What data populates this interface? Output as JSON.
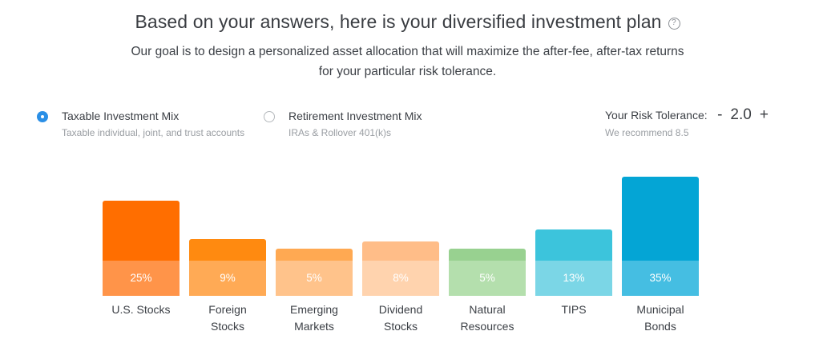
{
  "header": {
    "title": "Based on your answers, here is your diversified investment plan",
    "help_icon": "?",
    "subtitle_line1": "Our goal is to design a personalized asset allocation that will maximize the after-fee, after-tax returns",
    "subtitle_line2": "for your particular risk tolerance."
  },
  "options": [
    {
      "label": "Taxable Investment Mix",
      "description": "Taxable individual, joint, and trust accounts",
      "selected": true
    },
    {
      "label": "Retirement Investment Mix",
      "description": "IRAs & Rollover 401(k)s",
      "selected": false
    }
  ],
  "risk": {
    "label": "Your Risk Tolerance:",
    "decrement": "-",
    "value": "2.0",
    "increment": "+",
    "recommendation": "We recommend 8.5"
  },
  "chart_data": {
    "type": "bar",
    "title": "Taxable Investment Mix allocation",
    "categories": [
      "U.S. Stocks",
      "Foreign Stocks",
      "Emerging Markets",
      "Dividend Stocks",
      "Natural Resources",
      "TIPS",
      "Municipal Bonds"
    ],
    "values": [
      25,
      9,
      5,
      8,
      5,
      13,
      35
    ],
    "value_labels": [
      "25%",
      "9%",
      "5%",
      "8%",
      "5%",
      "13%",
      "35%"
    ],
    "label_lines": [
      [
        "U.S. Stocks"
      ],
      [
        "Foreign",
        "Stocks"
      ],
      [
        "Emerging",
        "Markets"
      ],
      [
        "Dividend",
        "Stocks"
      ],
      [
        "Natural",
        "Resources"
      ],
      [
        "TIPS"
      ],
      [
        "Municipal",
        "Bonds"
      ]
    ],
    "colors_top": [
      "#ff6e00",
      "#ff8a10",
      "#ffa952",
      "#ffbd88",
      "#98d190",
      "#3cc4dc",
      "#04a5d5"
    ],
    "colors_bottom": [
      "#ff9449",
      "#ffaa55",
      "#ffc38b",
      "#ffd3ae",
      "#b4dfad",
      "#7bd6e6",
      "#45bee2"
    ],
    "xlabel": "",
    "ylabel": "",
    "unit": "%",
    "grid": false,
    "legend": "none"
  }
}
